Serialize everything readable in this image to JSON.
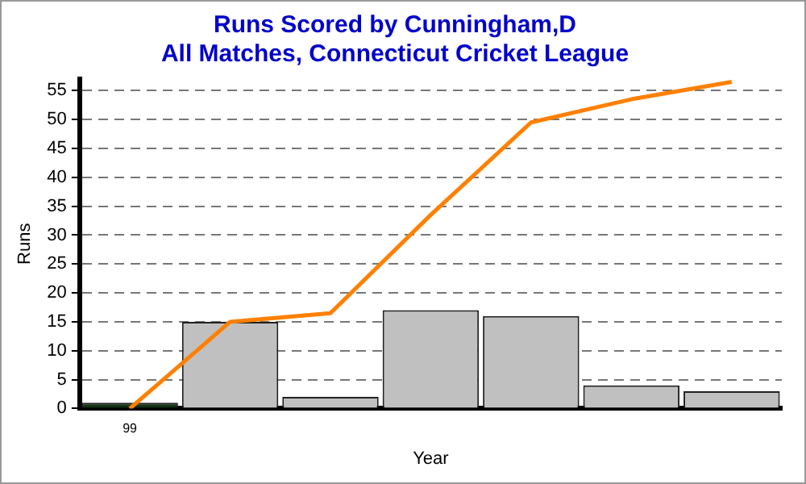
{
  "chart_data": {
    "type": "bar",
    "title": "Runs Scored by Cunningham,D\nAll Matches, Connecticut Cricket League",
    "xlabel": "Year",
    "ylabel": "Runs",
    "categories": [
      "99",
      null,
      null,
      null,
      null,
      null,
      null
    ],
    "series": [
      {
        "colors": [
          "#143214",
          "#c0c0c0",
          "#c0c0c0",
          "#c0c0c0",
          "#c0c0c0",
          "#c0c0c0",
          "#c0c0c0"
        ],
        "values": [
          1,
          15,
          2,
          17,
          16,
          4,
          3
        ]
      },
      {
        "type": "line",
        "color": "#ff8000",
        "values": [
          0,
          15,
          16.5,
          33.5,
          49.5,
          53.5,
          56.5
        ]
      }
    ],
    "ylim": [
      0,
      57
    ],
    "yticks": [
      0,
      5,
      10,
      15,
      20,
      25,
      30,
      35,
      40,
      45,
      50,
      55
    ],
    "grid": "y",
    "legend": false,
    "marker": "none",
    "line_style": "solid"
  }
}
